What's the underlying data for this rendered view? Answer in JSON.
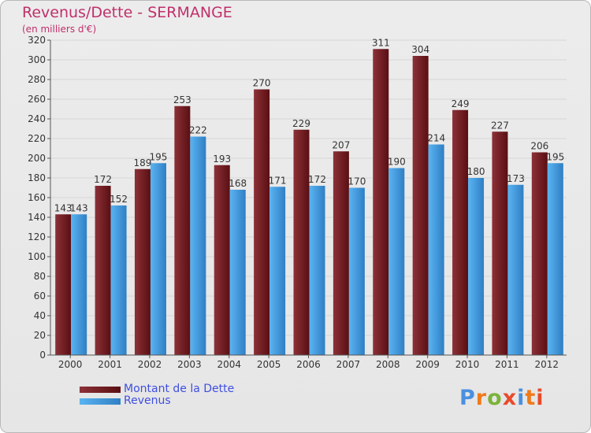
{
  "title": "Revenus/Dette - SERMANGE",
  "subtitle": "(en milliers d'€)",
  "brand": {
    "text": "Proxiti",
    "letter_colors": [
      "#4a8fe0",
      "#f07a1a",
      "#7bb33a",
      "#e84a2a",
      "#4a8fe0",
      "#f07a1a",
      "#e84a2a"
    ]
  },
  "chart_data": {
    "type": "bar",
    "categories": [
      "2000",
      "2001",
      "2002",
      "2003",
      "2004",
      "2005",
      "2006",
      "2007",
      "2008",
      "2009",
      "2010",
      "2011",
      "2012"
    ],
    "series": [
      {
        "name": "Montant de la Dette",
        "values": [
          143,
          172,
          189,
          253,
          193,
          270,
          229,
          207,
          311,
          304,
          249,
          227,
          206
        ],
        "color": "#7a1f24"
      },
      {
        "name": "Revenus",
        "values": [
          143,
          152,
          195,
          222,
          168,
          171,
          172,
          170,
          190,
          214,
          180,
          173,
          195
        ],
        "color": "#3a9de6"
      }
    ],
    "ylim": [
      0,
      320
    ],
    "ytick_step": 20,
    "grid": true,
    "legend_position": "bottom-left",
    "data_labels": true
  }
}
